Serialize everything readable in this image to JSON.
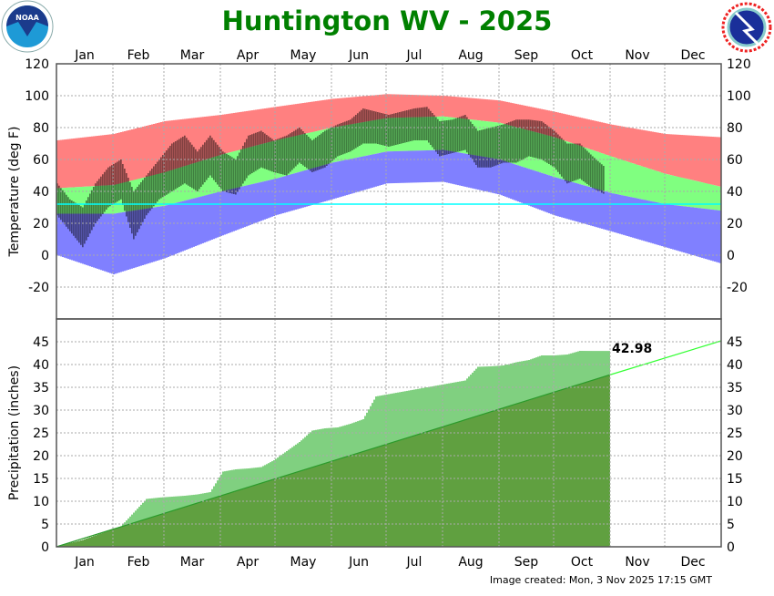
{
  "title": "Huntington WV - 2025",
  "footer": "Image created: Mon, 3 Nov 2025 17:15 GMT",
  "logos": {
    "left": "NOAA",
    "right": "NATIONAL WEATHER SERVICE"
  },
  "colors": {
    "title": "#008000",
    "record_high_band": "#ff8080",
    "normal_band": "#80ff80",
    "record_low_band": "#8080ff",
    "observed": "#000000",
    "freezing_line": "#00ffff",
    "precip_observed": "#80d080",
    "precip_normal": "#60a040",
    "precip_normal_line": "#33ff33"
  },
  "chart_data": [
    {
      "type": "bar",
      "ylabel": "Temperature (deg F)",
      "ylim": [
        -40,
        120
      ],
      "yticks": [
        120,
        100,
        80,
        60,
        40,
        20,
        0,
        -20
      ],
      "months": [
        "Jan",
        "Feb",
        "Mar",
        "Apr",
        "May",
        "Jun",
        "Jul",
        "Aug",
        "Sep",
        "Oct",
        "Nov",
        "Dec"
      ],
      "grid": true,
      "freezing_line": 32,
      "climatology_dates": [
        "01-01",
        "02-01",
        "03-01",
        "04-01",
        "05-01",
        "06-01",
        "07-01",
        "08-01",
        "09-01",
        "10-01",
        "11-01",
        "12-01",
        "12-31"
      ],
      "record_high": [
        72,
        76,
        84,
        88,
        93,
        98,
        101,
        100,
        97,
        90,
        82,
        76,
        74
      ],
      "normal_high": [
        42,
        44,
        52,
        63,
        72,
        80,
        86,
        87,
        83,
        74,
        62,
        51,
        43
      ],
      "normal_low": [
        26,
        26,
        31,
        40,
        48,
        58,
        65,
        66,
        60,
        49,
        39,
        32,
        28
      ],
      "record_low": [
        0,
        -12,
        -2,
        12,
        25,
        35,
        45,
        46,
        38,
        25,
        15,
        5,
        -5
      ],
      "observed_interval_days": 7,
      "observed_start": "2025-01-01",
      "observed_high": [
        45,
        35,
        30,
        45,
        55,
        60,
        40,
        50,
        60,
        70,
        75,
        65,
        75,
        65,
        60,
        75,
        78,
        72,
        75,
        80,
        72,
        78,
        82,
        85,
        92,
        90,
        88,
        90,
        92,
        93,
        84,
        85,
        88,
        78,
        80,
        82,
        85,
        85,
        84,
        78,
        70,
        70,
        62,
        55
      ],
      "observed_low": [
        25,
        15,
        5,
        20,
        30,
        35,
        10,
        25,
        35,
        40,
        45,
        40,
        50,
        40,
        38,
        50,
        55,
        52,
        50,
        58,
        52,
        55,
        62,
        65,
        70,
        70,
        68,
        70,
        72,
        72,
        62,
        64,
        66,
        55,
        55,
        58,
        58,
        62,
        60,
        55,
        45,
        48,
        42,
        38
      ]
    },
    {
      "type": "area",
      "ylabel": "Precipitation (inches)",
      "ylim": [
        0,
        50
      ],
      "yticks": [
        45,
        40,
        35,
        30,
        25,
        20,
        15,
        10,
        5,
        0
      ],
      "months": [
        "Jan",
        "Feb",
        "Mar",
        "Apr",
        "May",
        "Jun",
        "Jul",
        "Aug",
        "Sep",
        "Oct",
        "Nov",
        "Dec"
      ],
      "grid": true,
      "observed_interval_days": 7,
      "observed_start": "2025-01-01",
      "observed_cumulative": [
        0,
        0.8,
        1.5,
        2.5,
        3.5,
        4.5,
        7.5,
        10.5,
        10.8,
        11,
        11.2,
        11.5,
        12,
        16.5,
        17,
        17.2,
        17.5,
        19,
        21,
        23,
        25.5,
        26,
        26.2,
        27,
        28,
        33,
        33.5,
        34,
        34.5,
        35,
        35.5,
        36,
        36.5,
        39.5,
        39.6,
        39.8,
        40.5,
        41,
        42,
        42,
        42.2,
        43,
        42.98,
        42.98
      ],
      "observed_total": "42.98",
      "normal_cumulative_dates": [
        "01-01",
        "12-31"
      ],
      "normal_cumulative": [
        0,
        45.2
      ]
    }
  ]
}
